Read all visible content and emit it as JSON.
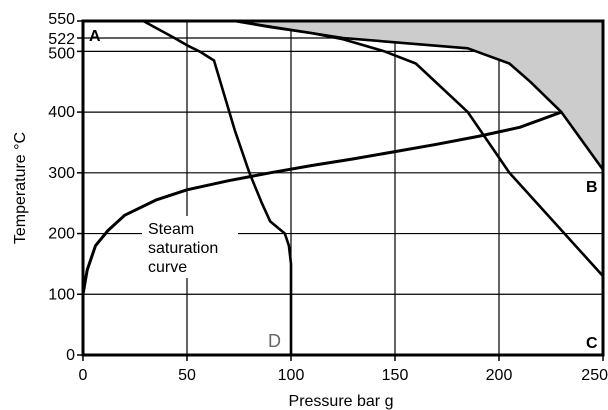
{
  "chart_data": {
    "type": "line",
    "title": "",
    "xlabel": "Pressure bar g",
    "ylabel": "Temperature °C",
    "xlim": [
      0,
      250
    ],
    "ylim": [
      0,
      550
    ],
    "xticks": [
      0,
      50,
      100,
      150,
      200,
      250
    ],
    "yticks": [
      0,
      100,
      200,
      300,
      400,
      500,
      522,
      550
    ],
    "grid": true,
    "colors": {
      "line": "#000000",
      "grid": "#000000",
      "shaded": "#cccccc",
      "d_label": "#666666"
    },
    "corner_labels": {
      "A": "A",
      "B": "B",
      "C": "C",
      "D": "D"
    },
    "annotation": [
      "Steam",
      "saturation",
      "curve"
    ],
    "saturation_curve": {
      "x": [
        0,
        2,
        6,
        12,
        20,
        35,
        50,
        70,
        90,
        110,
        130,
        150,
        170,
        190,
        210,
        230
      ],
      "y": [
        100,
        140,
        180,
        205,
        230,
        255,
        272,
        287,
        300,
        312,
        323,
        335,
        347,
        360,
        375,
        400
      ]
    },
    "shaded_region": {
      "x": [
        73,
        110,
        125,
        185,
        205,
        215,
        230,
        250,
        250
      ],
      "y": [
        550,
        530,
        522,
        505,
        480,
        450,
        400,
        305,
        550
      ]
    },
    "series": [
      {
        "x": [
          29,
          37,
          44,
          50,
          56,
          63,
          73,
          80,
          86,
          90,
          97,
          99,
          100,
          100
        ],
        "y": [
          550,
          535,
          522,
          510,
          500,
          485,
          370,
          300,
          250,
          220,
          200,
          180,
          150,
          0
        ]
      },
      {
        "x": [
          73,
          90,
          110,
          125,
          145,
          160,
          185,
          205,
          250
        ],
        "y": [
          550,
          540,
          530,
          520,
          500,
          480,
          400,
          300,
          130
        ]
      },
      {
        "x": [
          73,
          110,
          125,
          185,
          205,
          215,
          230,
          250
        ],
        "y": [
          550,
          530,
          522,
          505,
          480,
          450,
          400,
          305
        ]
      }
    ]
  }
}
